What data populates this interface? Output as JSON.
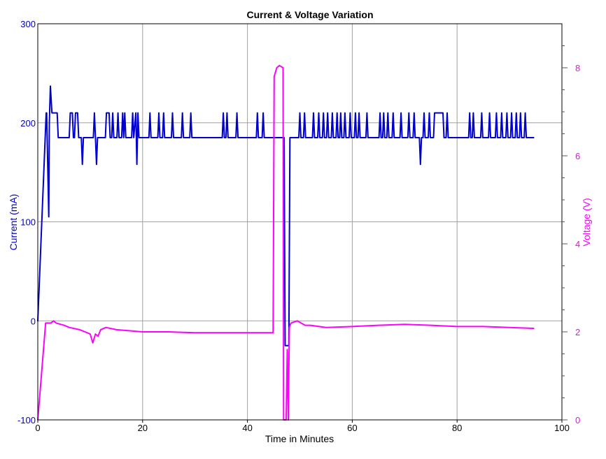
{
  "chart_data": {
    "type": "line",
    "title": "Current & Voltage Variation",
    "xlabel": "Time in Minutes",
    "ylabel_left": "Current (mA)",
    "ylabel_right": "Voltage (V)",
    "xlim": [
      0,
      100
    ],
    "ylim_left": [
      -100,
      300
    ],
    "ylim_right": [
      0,
      9
    ],
    "x_ticks": [
      0,
      20,
      40,
      60,
      80,
      100
    ],
    "y_left_ticks": [
      -100,
      0,
      100,
      200,
      300
    ],
    "y_right_ticks": [
      0,
      2,
      4,
      6,
      8
    ],
    "grid": true,
    "legend": "none",
    "colors": {
      "current": "#0000cc",
      "voltage": "#ff00ff",
      "grid": "#a0a0a0",
      "axis": "#000000"
    },
    "series": [
      {
        "name": "Current (mA)",
        "axis": "left",
        "color": "#0000cc",
        "points": [
          [
            0,
            0
          ],
          [
            1.6,
            210
          ],
          [
            1.7,
            210
          ],
          [
            2.1,
            105
          ],
          [
            2.2,
            200
          ],
          [
            2.4,
            237
          ],
          [
            2.7,
            210
          ],
          [
            3.7,
            210
          ],
          [
            3.9,
            185
          ],
          [
            6.0,
            185
          ],
          [
            6.2,
            210
          ],
          [
            6.6,
            210
          ],
          [
            6.8,
            185
          ],
          [
            7.0,
            185
          ],
          [
            7.2,
            210
          ],
          [
            7.6,
            210
          ],
          [
            7.8,
            185
          ],
          [
            8.3,
            185
          ],
          [
            8.5,
            158
          ],
          [
            8.7,
            185
          ],
          [
            10.6,
            185
          ],
          [
            10.8,
            210
          ],
          [
            11.0,
            185
          ],
          [
            11.2,
            158
          ],
          [
            11.4,
            185
          ],
          [
            12.9,
            185
          ],
          [
            13.1,
            210
          ],
          [
            13.6,
            210
          ],
          [
            13.8,
            185
          ],
          [
            14.1,
            185
          ],
          [
            14.3,
            210
          ],
          [
            14.5,
            185
          ],
          [
            15.1,
            185
          ],
          [
            15.3,
            210
          ],
          [
            15.5,
            185
          ],
          [
            16.0,
            185
          ],
          [
            16.2,
            210
          ],
          [
            16.4,
            185
          ],
          [
            16.6,
            210
          ],
          [
            16.8,
            185
          ],
          [
            17.9,
            185
          ],
          [
            18.1,
            210
          ],
          [
            18.3,
            185
          ],
          [
            18.7,
            210
          ],
          [
            18.9,
            158
          ],
          [
            19.1,
            210
          ],
          [
            19.3,
            185
          ],
          [
            21.2,
            185
          ],
          [
            21.4,
            210
          ],
          [
            21.6,
            185
          ],
          [
            22.9,
            185
          ],
          [
            23.1,
            210
          ],
          [
            23.3,
            185
          ],
          [
            23.8,
            185
          ],
          [
            24.0,
            210
          ],
          [
            24.2,
            185
          ],
          [
            25.5,
            185
          ],
          [
            25.7,
            210
          ],
          [
            25.9,
            185
          ],
          [
            27.4,
            185
          ],
          [
            27.6,
            210
          ],
          [
            27.8,
            185
          ],
          [
            29.0,
            185
          ],
          [
            29.2,
            210
          ],
          [
            29.4,
            185
          ],
          [
            35.2,
            185
          ],
          [
            35.4,
            210
          ],
          [
            35.6,
            185
          ],
          [
            35.9,
            185
          ],
          [
            36.1,
            210
          ],
          [
            36.3,
            185
          ],
          [
            37.8,
            185
          ],
          [
            38.0,
            210
          ],
          [
            38.2,
            185
          ],
          [
            41.7,
            185
          ],
          [
            41.9,
            210
          ],
          [
            42.1,
            185
          ],
          [
            42.8,
            185
          ],
          [
            43.0,
            210
          ],
          [
            43.2,
            185
          ],
          [
            47.0,
            185
          ],
          [
            47.2,
            -25
          ],
          [
            47.9,
            -25
          ],
          [
            48.1,
            185
          ],
          [
            49.8,
            185
          ],
          [
            50.0,
            210
          ],
          [
            50.2,
            185
          ],
          [
            50.7,
            185
          ],
          [
            50.9,
            210
          ],
          [
            51.1,
            185
          ],
          [
            52.4,
            185
          ],
          [
            52.6,
            210
          ],
          [
            52.8,
            185
          ],
          [
            53.4,
            185
          ],
          [
            53.6,
            210
          ],
          [
            53.8,
            185
          ],
          [
            54.3,
            185
          ],
          [
            54.5,
            210
          ],
          [
            54.7,
            185
          ],
          [
            55.1,
            185
          ],
          [
            55.3,
            210
          ],
          [
            55.5,
            185
          ],
          [
            56.0,
            185
          ],
          [
            56.2,
            210
          ],
          [
            56.4,
            185
          ],
          [
            56.9,
            185
          ],
          [
            57.1,
            210
          ],
          [
            57.3,
            185
          ],
          [
            57.6,
            185
          ],
          [
            57.8,
            210
          ],
          [
            58.0,
            185
          ],
          [
            58.4,
            185
          ],
          [
            58.6,
            210
          ],
          [
            58.8,
            185
          ],
          [
            59.4,
            185
          ],
          [
            59.6,
            210
          ],
          [
            59.8,
            185
          ],
          [
            60.4,
            185
          ],
          [
            60.6,
            210
          ],
          [
            60.8,
            185
          ],
          [
            61.1,
            185
          ],
          [
            61.3,
            210
          ],
          [
            61.5,
            185
          ],
          [
            62.6,
            185
          ],
          [
            62.8,
            210
          ],
          [
            63.0,
            185
          ],
          [
            65.1,
            185
          ],
          [
            65.3,
            210
          ],
          [
            65.5,
            185
          ],
          [
            65.8,
            185
          ],
          [
            66.0,
            210
          ],
          [
            66.2,
            185
          ],
          [
            66.6,
            185
          ],
          [
            66.8,
            210
          ],
          [
            67.0,
            185
          ],
          [
            67.6,
            185
          ],
          [
            67.8,
            210
          ],
          [
            68.0,
            185
          ],
          [
            69.1,
            185
          ],
          [
            69.3,
            210
          ],
          [
            69.5,
            185
          ],
          [
            70.6,
            185
          ],
          [
            70.8,
            210
          ],
          [
            71.0,
            185
          ],
          [
            71.6,
            185
          ],
          [
            71.8,
            210
          ],
          [
            72.0,
            185
          ],
          [
            72.8,
            185
          ],
          [
            73.0,
            158
          ],
          [
            73.2,
            185
          ],
          [
            73.5,
            185
          ],
          [
            73.7,
            210
          ],
          [
            73.9,
            185
          ],
          [
            74.5,
            185
          ],
          [
            74.7,
            210
          ],
          [
            74.9,
            185
          ],
          [
            75.5,
            185
          ],
          [
            75.7,
            210
          ],
          [
            77.3,
            210
          ],
          [
            77.5,
            185
          ],
          [
            77.9,
            185
          ],
          [
            78.1,
            210
          ],
          [
            78.3,
            185
          ],
          [
            82.2,
            185
          ],
          [
            82.4,
            210
          ],
          [
            82.6,
            185
          ],
          [
            82.9,
            185
          ],
          [
            83.1,
            210
          ],
          [
            83.3,
            185
          ],
          [
            84.5,
            185
          ],
          [
            84.7,
            210
          ],
          [
            84.9,
            185
          ],
          [
            86.0,
            185
          ],
          [
            86.2,
            210
          ],
          [
            86.4,
            185
          ],
          [
            87.3,
            185
          ],
          [
            87.5,
            210
          ],
          [
            87.7,
            185
          ],
          [
            88.3,
            185
          ],
          [
            88.5,
            210
          ],
          [
            88.7,
            185
          ],
          [
            89.3,
            185
          ],
          [
            89.5,
            210
          ],
          [
            89.7,
            185
          ],
          [
            90.2,
            185
          ],
          [
            90.4,
            210
          ],
          [
            90.6,
            185
          ],
          [
            91.1,
            185
          ],
          [
            91.3,
            210
          ],
          [
            91.5,
            185
          ],
          [
            91.9,
            185
          ],
          [
            92.1,
            210
          ],
          [
            92.3,
            185
          ],
          [
            92.8,
            185
          ],
          [
            93.0,
            210
          ],
          [
            93.2,
            185
          ],
          [
            94.6,
            185
          ]
        ]
      },
      {
        "name": "Voltage (V)",
        "axis": "right",
        "color": "#ff00ff",
        "points": [
          [
            0,
            0
          ],
          [
            1.5,
            2.2
          ],
          [
            2.5,
            2.2
          ],
          [
            3.0,
            2.25
          ],
          [
            3.5,
            2.2
          ],
          [
            5.0,
            2.15
          ],
          [
            6.0,
            2.1
          ],
          [
            8.0,
            2.05
          ],
          [
            9.0,
            2.0
          ],
          [
            10.0,
            1.95
          ],
          [
            10.5,
            1.75
          ],
          [
            11.0,
            1.95
          ],
          [
            11.5,
            1.9
          ],
          [
            12.0,
            2.05
          ],
          [
            13.0,
            2.1
          ],
          [
            15.0,
            2.05
          ],
          [
            20.0,
            2.0
          ],
          [
            25.0,
            2.0
          ],
          [
            30.0,
            1.98
          ],
          [
            35.0,
            1.98
          ],
          [
            40.0,
            1.98
          ],
          [
            44.9,
            1.98
          ],
          [
            45.1,
            7.8
          ],
          [
            45.6,
            8.0
          ],
          [
            46.1,
            8.05
          ],
          [
            46.8,
            8.0
          ],
          [
            46.9,
            0.0
          ],
          [
            47.4,
            0.0
          ],
          [
            47.6,
            1.6
          ],
          [
            47.8,
            0.0
          ],
          [
            48.0,
            2.1
          ],
          [
            48.3,
            2.2
          ],
          [
            49.5,
            2.25
          ],
          [
            51.0,
            2.15
          ],
          [
            52.0,
            2.15
          ],
          [
            55.0,
            2.1
          ],
          [
            60.0,
            2.12
          ],
          [
            65.0,
            2.15
          ],
          [
            70.0,
            2.17
          ],
          [
            75.0,
            2.15
          ],
          [
            80.0,
            2.12
          ],
          [
            85.0,
            2.12
          ],
          [
            90.0,
            2.1
          ],
          [
            94.6,
            2.08
          ]
        ]
      }
    ]
  }
}
